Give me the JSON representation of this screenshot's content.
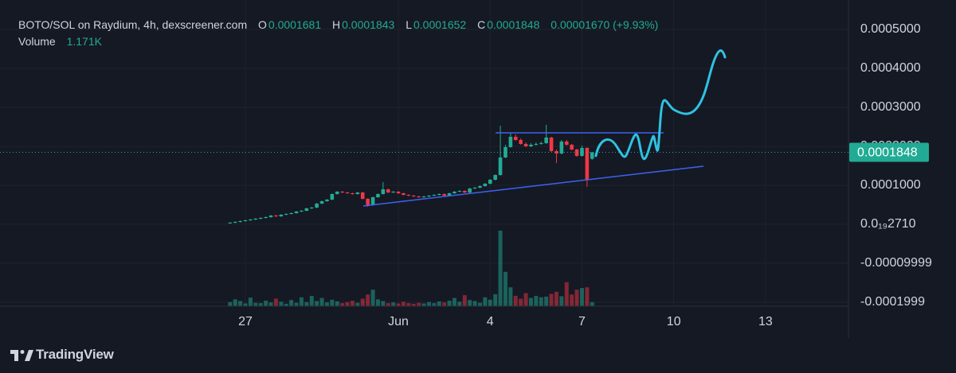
{
  "chart_data": {
    "type": "candlestick",
    "legend": {
      "title": "BOTO/SOL on Raydium, 4h, dexscreener.com",
      "o": "O",
      "open": "0.0001681",
      "h": "H",
      "high": "0.0001843",
      "l": "L",
      "low": "0.0001652",
      "c": "C",
      "close": "0.0001848",
      "change": "0.00001670 (+9.93%)",
      "volume_name": "Volume",
      "volume": "1.171K"
    },
    "x": [
      26.5,
      26.667,
      26.833,
      27,
      27.167,
      27.333,
      27.5,
      27.667,
      27.833,
      28,
      28.167,
      28.333,
      28.5,
      28.667,
      28.833,
      29,
      29.167,
      29.333,
      29.5,
      29.667,
      29.833,
      30,
      30.167,
      30.333,
      30.5,
      30.667,
      30.833,
      31,
      31.167,
      31.333,
      31.5,
      31.667,
      31.833,
      32,
      32.167,
      32.333,
      32.5,
      32.667,
      32.833,
      33,
      33.167,
      33.333,
      33.5,
      33.667,
      33.833,
      34,
      34.167,
      34.333,
      34.5,
      34.667,
      34.833,
      35,
      35.167,
      35.333,
      35.5,
      35.667,
      35.833,
      36,
      36.167,
      36.333,
      36.5,
      36.667,
      36.833,
      37,
      37.167,
      37.333,
      37.5,
      37.667,
      37.833,
      38,
      38.167,
      38.333
    ],
    "open": [
      3.5e-06,
      4.1e-06,
      6.1e-06,
      8.2e-06,
      1.02e-05,
      1.22e-05,
      1.43e-05,
      1.63e-05,
      1.84e-05,
      2.25e-05,
      2.04e-05,
      2.45e-05,
      2.65e-05,
      2.86e-05,
      3.27e-05,
      3.47e-05,
      4.08e-05,
      4.29e-05,
      5.31e-05,
      5.92e-05,
      6.33e-05,
      7.76e-05,
      8.37e-05,
      8.16e-05,
      7.96e-05,
      7.76e-05,
      8.16e-05,
      6.53e-05,
      4.9e-05,
      6.94e-05,
      7.76e-05,
      8.98e-05,
      8.16e-05,
      8.37e-05,
      7.96e-05,
      7.55e-05,
      7.35e-05,
      7.14e-05,
      6.94e-05,
      7.14e-05,
      7.35e-05,
      7.55e-05,
      7.76e-05,
      7.35e-05,
      7.96e-05,
      8.37e-05,
      8.57e-05,
      8.16e-05,
      9.18e-05,
      9.39e-05,
      9.8e-05,
      0.0001041,
      0.0001143,
      0.0001265,
      0.0001714,
      0.000198,
      0.0002245,
      0.0002163,
      0.0002061,
      0.0002,
      0.0002041,
      0.0002061,
      0.0002082,
      0.0002225,
      0.0001878,
      0.0001816,
      0.0002123,
      0.0002041,
      0.0001918,
      0.0001755,
      0.0001959,
      0.0001681
    ],
    "high": [
      5.6e-06,
      7.6e-06,
      9.7e-06,
      1.17e-05,
      1.37e-05,
      1.58e-05,
      1.78e-05,
      1.99e-05,
      2.4e-05,
      2.4e-05,
      2.6e-05,
      2.8e-05,
      3.01e-05,
      3.42e-05,
      3.62e-05,
      4.23e-05,
      4.44e-05,
      5.46e-05,
      6.07e-05,
      6.48e-05,
      7.91e-05,
      8.52e-05,
      8.52e-05,
      8.31e-05,
      8.11e-05,
      8.31e-05,
      8.31e-05,
      6.68e-05,
      7.09e-05,
      7.91e-05,
      0.0001082,
      9.13e-05,
      8.52e-05,
      8.52e-05,
      8.11e-05,
      7.7e-05,
      7.5e-05,
      7.29e-05,
      7.29e-05,
      7.5e-05,
      7.7e-05,
      7.91e-05,
      7.91e-05,
      8.11e-05,
      8.52e-05,
      8.72e-05,
      8.72e-05,
      9.33e-05,
      9.54e-05,
      9.95e-05,
      0.0001056,
      0.0001158,
      0.000128,
      0.0002531,
      0.0002041,
      0.0002347,
      0.0002306,
      0.0002204,
      0.0002102,
      0.0002082,
      0.0002102,
      0.0002123,
      0.0002551,
      0.0002245,
      0.0001918,
      0.0002163,
      0.0002163,
      0.0002061,
      0.0001939,
      0.000202,
      0.000198,
      0.0001843
    ],
    "low": [
      2e-06,
      2.6e-06,
      4.6e-06,
      6.7e-06,
      8.7e-06,
      1.07e-05,
      1.28e-05,
      1.48e-05,
      1.69e-05,
      1.89e-05,
      1.89e-05,
      2.3e-05,
      2.5e-05,
      2.71e-05,
      3.12e-05,
      3.32e-05,
      3.93e-05,
      4.14e-05,
      5.16e-05,
      5.77e-05,
      6.18e-05,
      7.61e-05,
      8.01e-05,
      7.81e-05,
      7.61e-05,
      7.61e-05,
      6.38e-05,
      4.49e-05,
      4.75e-05,
      6.79e-05,
      7.61e-05,
      8.01e-05,
      8.01e-05,
      7.81e-05,
      7.4e-05,
      7.2e-05,
      6.99e-05,
      6.79e-05,
      6.79e-05,
      6.99e-05,
      7.2e-05,
      7.4e-05,
      7.2e-05,
      7.2e-05,
      7.81e-05,
      8.22e-05,
      8.01e-05,
      8.01e-05,
      9.03e-05,
      9.24e-05,
      9.65e-05,
      0.0001026,
      0.0001128,
      0.000125,
      0.0001699,
      0.0001965,
      0.0002143,
      0.0002041,
      0.000198,
      0.000198,
      0.000202,
      0.0002041,
      0.0002061,
      0.0001857,
      0.0001571,
      0.0001796,
      0.000202,
      0.0001898,
      0.0001735,
      0.0001735,
      9.59e-05,
      0.0001652
    ],
    "close": [
      4.1e-06,
      6.1e-06,
      8.2e-06,
      1.02e-05,
      1.22e-05,
      1.43e-05,
      1.63e-05,
      1.84e-05,
      2.25e-05,
      2.04e-05,
      2.45e-05,
      2.65e-05,
      2.86e-05,
      3.27e-05,
      3.47e-05,
      4.08e-05,
      4.29e-05,
      5.31e-05,
      5.92e-05,
      6.33e-05,
      7.76e-05,
      8.37e-05,
      8.16e-05,
      7.96e-05,
      7.76e-05,
      8.16e-05,
      6.53e-05,
      4.9e-05,
      6.94e-05,
      7.76e-05,
      8.98e-05,
      8.16e-05,
      8.37e-05,
      7.96e-05,
      7.55e-05,
      7.35e-05,
      7.14e-05,
      6.94e-05,
      7.14e-05,
      7.35e-05,
      7.55e-05,
      7.76e-05,
      7.35e-05,
      7.96e-05,
      8.37e-05,
      8.57e-05,
      8.16e-05,
      9.18e-05,
      9.39e-05,
      9.8e-05,
      0.0001041,
      0.0001143,
      0.0001265,
      0.0001714,
      0.000198,
      0.0002245,
      0.0002163,
      0.0002061,
      0.0002,
      0.0002041,
      0.0002061,
      0.0002082,
      0.0002225,
      0.0001878,
      0.0001816,
      0.0002123,
      0.0002041,
      0.0001918,
      0.0001755,
      0.0001959,
      0.0001143,
      0.0001848
    ],
    "volume": [
      1200,
      2000,
      1500,
      800,
      2500,
      1000,
      900,
      1600,
      1100,
      2200,
      1300,
      700,
      1800,
      1000,
      2600,
      1200,
      3000,
      1500,
      2400,
      1100,
      1900,
      1400,
      900,
      1200,
      1600,
      1000,
      2200,
      3400,
      4800,
      2000,
      1500,
      900,
      1100,
      800,
      1300,
      900,
      700,
      1000,
      800,
      1200,
      900,
      1400,
      1100,
      1600,
      2400,
      1300,
      3200,
      1800,
      1500,
      1000,
      2600,
      1900,
      3500,
      22000,
      10000,
      5500,
      3000,
      2200,
      3800,
      2400,
      3000,
      2600,
      2800,
      3600,
      4200,
      2900,
      7000,
      3400,
      4800,
      5300,
      5500,
      1171
    ],
    "up_color": "#22ab94",
    "down_color": "#f23645",
    "xlim": [
      18.98,
      46.71
    ],
    "xticks": [
      27,
      {
        "value": 32,
        "label": "Jun"
      },
      {
        "value": 35,
        "label": "4"
      },
      {
        "value": 38,
        "label": "7"
      },
      {
        "value": 41,
        "label": "10"
      },
      {
        "value": 44,
        "label": "13"
      }
    ],
    "ylim": [
      -0.0002102,
      0.0005755
    ],
    "yticks": [
      {
        "value": 0.0005,
        "label": "0.0005000"
      },
      {
        "value": 0.0004,
        "label": "0.0004000"
      },
      {
        "value": 0.0003,
        "label": "0.0003000"
      },
      {
        "value": 0.0002,
        "label": "0.0002000"
      },
      {
        "value": 0.0001,
        "label": "0.0001000"
      },
      {
        "value": 2.71e-20,
        "label": "0.0₁₉2710"
      },
      -9.999e-05,
      -0.0001999
    ],
    "grid": true,
    "price_line": true
  },
  "branding": "TradingView"
}
